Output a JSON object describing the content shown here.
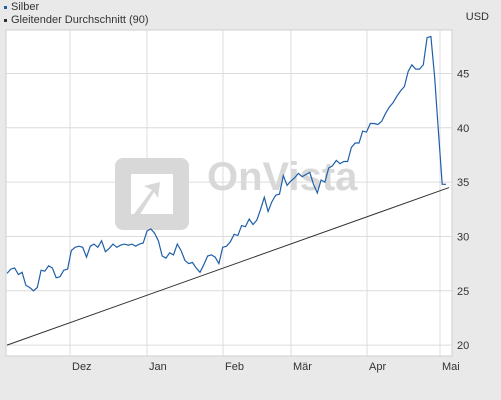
{
  "legend": {
    "series1": {
      "label": "Silber",
      "color": "#1f5fa8"
    },
    "series2": {
      "label": "Gleitender Durchschnitt (90)",
      "color": "#333333"
    }
  },
  "currency": "USD",
  "watermark": "OnVista",
  "chart_data": {
    "type": "line",
    "title": "",
    "xlabel": "",
    "ylabel": "USD",
    "ylim": [
      19,
      49
    ],
    "x_tick_labels": [
      "Dez",
      "Jan",
      "Feb",
      "Mär",
      "Apr",
      "Mai"
    ],
    "y_ticks": [
      20,
      25,
      30,
      35,
      40,
      45
    ],
    "grid": true,
    "legend_position": "top-left",
    "series": [
      {
        "name": "Silber",
        "color": "#1f5fa8",
        "values": [
          26.6,
          27.0,
          27.1,
          26.5,
          26.7,
          25.5,
          25.3,
          25.0,
          25.3,
          26.9,
          26.8,
          27.3,
          27.1,
          26.2,
          26.3,
          26.9,
          27.0,
          28.7,
          29.0,
          29.1,
          29.0,
          28.1,
          29.1,
          29.3,
          29.0,
          29.6,
          28.6,
          28.9,
          29.3,
          29.0,
          29.2,
          29.3,
          29.2,
          29.3,
          29.1,
          29.3,
          29.4,
          30.5,
          30.7,
          30.3,
          29.6,
          28.2,
          28.0,
          28.5,
          28.3,
          29.3,
          28.7,
          27.8,
          27.5,
          27.6,
          27.1,
          26.7,
          27.4,
          28.2,
          28.3,
          28.1,
          27.5,
          29.0,
          29.1,
          29.5,
          30.2,
          30.1,
          31.0,
          30.9,
          31.6,
          31.1,
          31.5,
          32.5,
          33.6,
          32.3,
          33.2,
          33.8,
          33.9,
          35.6,
          34.7,
          35.1,
          35.4,
          35.8,
          35.5,
          35.7,
          35.9,
          34.8,
          34.0,
          35.2,
          35.0,
          36.3,
          36.5,
          37.0,
          36.7,
          36.9,
          36.9,
          38.2,
          38.6,
          38.6,
          39.7,
          39.6,
          40.4,
          40.4,
          40.3,
          40.6,
          41.3,
          41.9,
          42.3,
          42.9,
          43.4,
          43.8,
          45.2,
          45.8,
          45.4,
          45.4,
          45.8,
          48.3,
          48.4,
          44.7,
          39.7,
          34.8,
          34.8
        ]
      },
      {
        "name": "Gleitender Durchschnitt (90)",
        "color": "#333333",
        "start": 20.0,
        "end": 34.5
      }
    ]
  }
}
